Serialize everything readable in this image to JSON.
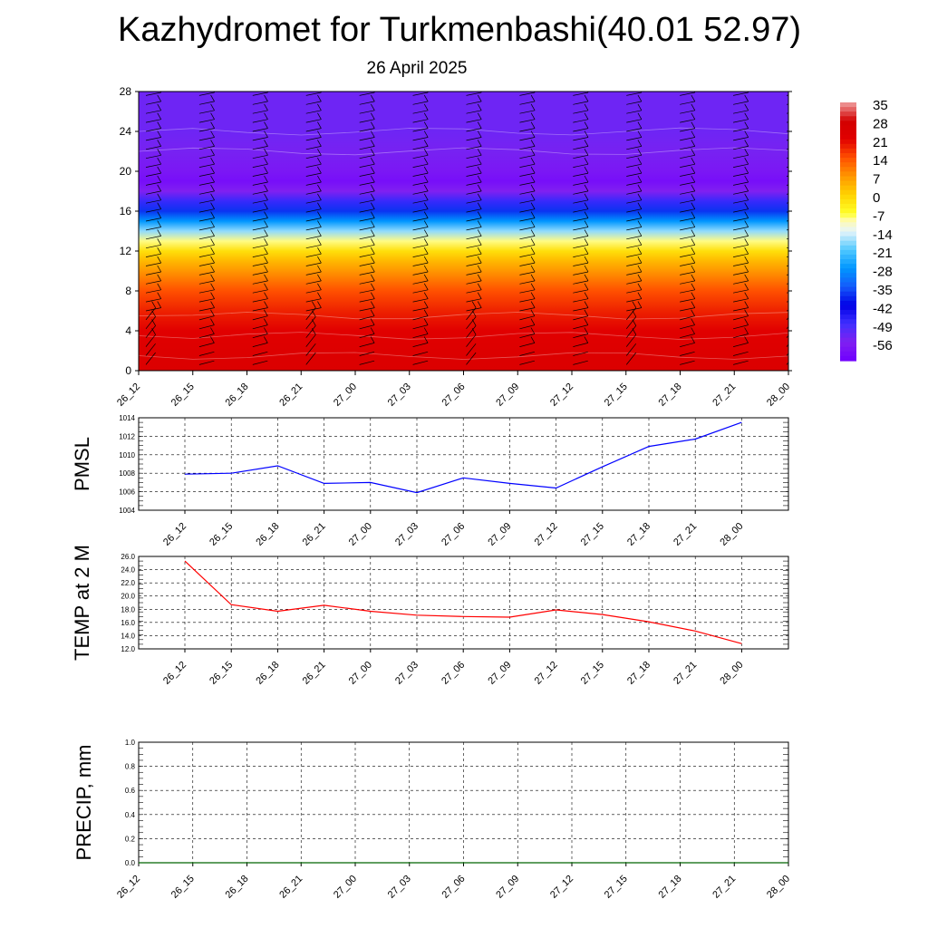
{
  "header": {
    "title": "Kazhydromet for Turkmenbashi(40.01 52.97)",
    "date": "26 April 2025"
  },
  "colors": {
    "pmsl_line": "#0000ff",
    "temp_line": "#ff0000",
    "precip_line": "#006400",
    "grid": "#000000"
  },
  "chart_data": [
    {
      "id": "temperature-cross-section",
      "type": "heatmap",
      "x_tick_labels": [
        "26_12",
        "26_15",
        "26_18",
        "26_21",
        "27_00",
        "27_03",
        "27_06",
        "27_09",
        "27_12",
        "27_15",
        "27_18",
        "27_21",
        "28_00"
      ],
      "y_ticks": [
        0,
        4,
        8,
        12,
        16,
        20,
        24,
        28
      ],
      "ylim": [
        0,
        28
      ],
      "colorbar": {
        "labels": [
          "35",
          "28",
          "21",
          "14",
          "7",
          "0",
          "-7",
          "-14",
          "-21",
          "-28",
          "-35",
          "-42",
          "-49",
          "-56"
        ],
        "range": [
          -63,
          35
        ]
      },
      "temperature_profile": {
        "levels": [
          0,
          2,
          4,
          6,
          8,
          10,
          11,
          12,
          13,
          14,
          15,
          16,
          17,
          18,
          19,
          20,
          22,
          24,
          26,
          28
        ],
        "values": [
          24,
          23,
          21,
          18,
          14,
          7,
          3,
          -2,
          -9,
          -18,
          -28,
          -38,
          -48,
          -56,
          -60,
          -58,
          -55,
          -54,
          -54,
          -54
        ]
      },
      "wind_barbs": true
    },
    {
      "id": "pmsl",
      "type": "line",
      "ylabel": "PMSL",
      "ylim": [
        1004,
        1014
      ],
      "y_ticks": [
        1004,
        1006,
        1008,
        1010,
        1012,
        1014
      ],
      "categories": [
        "26_12",
        "26_15",
        "26_18",
        "26_21",
        "27_00",
        "27_03",
        "27_06",
        "27_09",
        "27_12",
        "27_15",
        "27_18",
        "27_21",
        "28_00"
      ],
      "values": [
        1007.9,
        1008.0,
        1008.8,
        1006.9,
        1007.0,
        1005.9,
        1007.5,
        1006.9,
        1006.4,
        1008.7,
        1010.9,
        1011.7,
        1013.5
      ]
    },
    {
      "id": "temp2m",
      "type": "line",
      "ylabel": "TEMP at 2 M",
      "ylim": [
        12.0,
        26.0
      ],
      "y_ticks": [
        "12.0",
        "14.0",
        "16.0",
        "18.0",
        "20.0",
        "22.0",
        "24.0",
        "26.0"
      ],
      "categories": [
        "26_12",
        "26_15",
        "26_18",
        "26_21",
        "27_00",
        "27_03",
        "27_06",
        "27_09",
        "27_12",
        "27_15",
        "27_18",
        "27_21",
        "28_00"
      ],
      "values": [
        25.3,
        18.7,
        17.7,
        18.6,
        17.7,
        17.1,
        16.9,
        16.8,
        17.9,
        17.2,
        16.1,
        14.7,
        12.8
      ]
    },
    {
      "id": "precip",
      "type": "line",
      "ylabel": "PRECIP, mm",
      "ylim": [
        0.0,
        1.0
      ],
      "y_ticks": [
        "0.0",
        "0.2",
        "0.4",
        "0.6",
        "0.8",
        "1.0"
      ],
      "categories": [
        "26_12",
        "26_15",
        "26_18",
        "26_21",
        "27_00",
        "27_03",
        "27_06",
        "27_09",
        "27_12",
        "27_15",
        "27_18",
        "27_21",
        "28_00"
      ],
      "values": [
        0,
        0,
        0,
        0,
        0,
        0,
        0,
        0,
        0,
        0,
        0,
        0,
        0
      ]
    }
  ]
}
